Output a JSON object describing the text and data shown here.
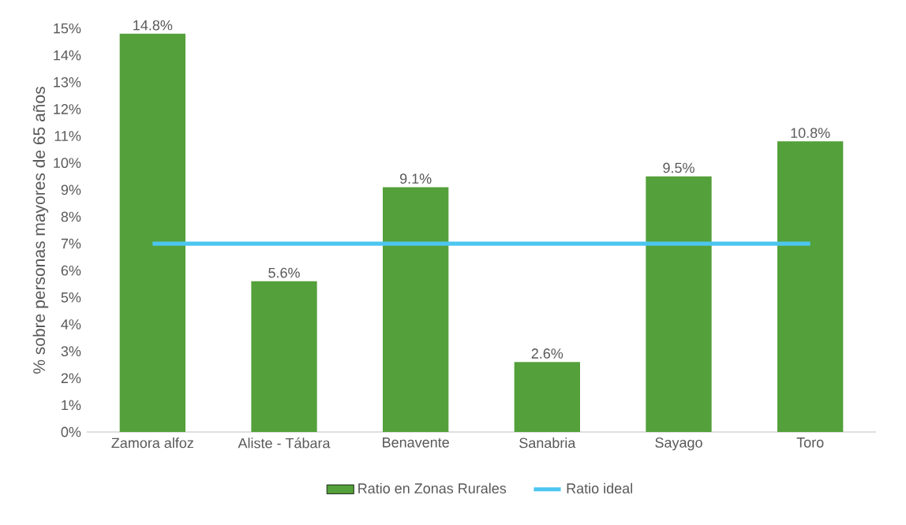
{
  "chart_data": {
    "type": "bar",
    "ylabel": "% sobre personas mayores de 65 años",
    "categories": [
      "Zamora alfoz",
      "Aliste - Tábara",
      "Benavente",
      "Sanabria",
      "Sayago",
      "Toro"
    ],
    "series": [
      {
        "name": "Ratio en Zonas Rurales",
        "color": "#54a03a",
        "values": [
          14.8,
          5.6,
          9.1,
          2.6,
          9.5,
          10.8
        ],
        "value_labels": [
          "14.8%",
          "5.6%",
          "9.1%",
          "2.6%",
          "9.5%",
          "10.8%"
        ]
      },
      {
        "name": "Ratio ideal",
        "type": "line",
        "color": "#4dc6ef",
        "values": [
          7,
          7,
          7,
          7,
          7,
          7
        ]
      }
    ],
    "ylim": [
      0,
      15
    ],
    "yticks": [
      {
        "value": 0,
        "label": "0%"
      },
      {
        "value": 1,
        "label": "1%"
      },
      {
        "value": 2,
        "label": "2%"
      },
      {
        "value": 3,
        "label": "3%"
      },
      {
        "value": 4,
        "label": "4%"
      },
      {
        "value": 5,
        "label": "5%"
      },
      {
        "value": 6,
        "label": "6%"
      },
      {
        "value": 7,
        "label": "7%"
      },
      {
        "value": 8,
        "label": "8%"
      },
      {
        "value": 9,
        "label": "9%"
      },
      {
        "value": 10,
        "label": "10%"
      },
      {
        "value": 11,
        "label": "11%"
      },
      {
        "value": 12,
        "label": "12%"
      },
      {
        "value": 13,
        "label": "13%"
      },
      {
        "value": 14,
        "label": "14%"
      },
      {
        "value": 15,
        "label": "15%"
      }
    ],
    "legend": "bottom"
  }
}
